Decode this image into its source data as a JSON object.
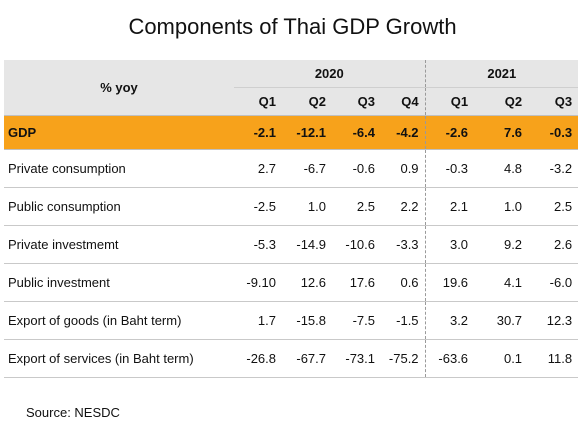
{
  "chart_data": {
    "type": "table",
    "title": "Components of Thai GDP Growth",
    "header_label": "% yoy",
    "years": [
      {
        "year": "2020",
        "quarters": [
          "Q1",
          "Q2",
          "Q3",
          "Q4"
        ]
      },
      {
        "year": "2021",
        "quarters": [
          "Q1",
          "Q2",
          "Q3"
        ]
      }
    ],
    "rows": [
      {
        "label": "GDP",
        "values": [
          "-2.1",
          "-12.1",
          "-6.4",
          "-4.2",
          "-2.6",
          "7.6",
          "-0.3"
        ],
        "highlight": true
      },
      {
        "label": "Private consumption",
        "values": [
          "2.7",
          "-6.7",
          "-0.6",
          "0.9",
          "-0.3",
          "4.8",
          "-3.2"
        ]
      },
      {
        "label": "Public consumption",
        "values": [
          "-2.5",
          "1.0",
          "2.5",
          "2.2",
          "2.1",
          "1.0",
          "2.5"
        ]
      },
      {
        "label": "Private investmemt",
        "values": [
          "-5.3",
          "-14.9",
          "-10.6",
          "-3.3",
          "3.0",
          "9.2",
          "2.6"
        ]
      },
      {
        "label": "Public investment",
        "values": [
          "-9.10",
          "12.6",
          "17.6",
          "0.6",
          "19.6",
          "4.1",
          "-6.0"
        ]
      },
      {
        "label": "Export of goods (in Baht term)",
        "values": [
          "1.7",
          "-15.8",
          "-7.5",
          "-1.5",
          "3.2",
          "30.7",
          "12.3"
        ]
      },
      {
        "label": "Export of services (in Baht term)",
        "values": [
          "-26.8",
          "-67.7",
          "-73.1",
          "-75.2",
          "-63.6",
          "0.1",
          "11.8"
        ]
      }
    ],
    "source": "Source: NESDC",
    "colors": {
      "highlight": "#f7a21b",
      "header_bg": "#e6e6e6"
    }
  }
}
